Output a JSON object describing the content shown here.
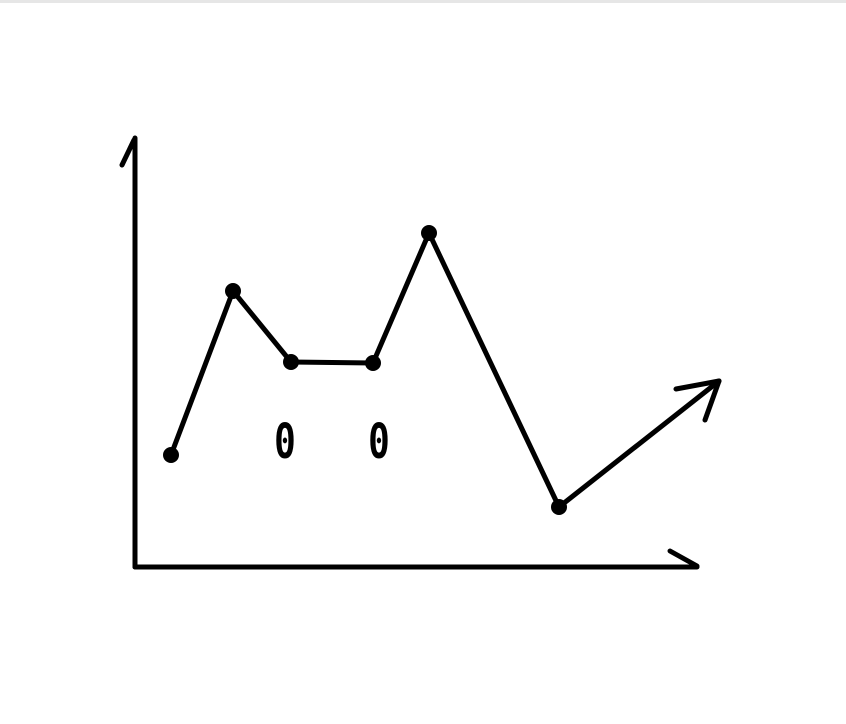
{
  "colors": {
    "ink": "#000000",
    "background": "#ffffff",
    "divider": "#e6e6e6"
  },
  "annotations": [
    {
      "text": "0"
    },
    {
      "text": "0"
    }
  ]
}
